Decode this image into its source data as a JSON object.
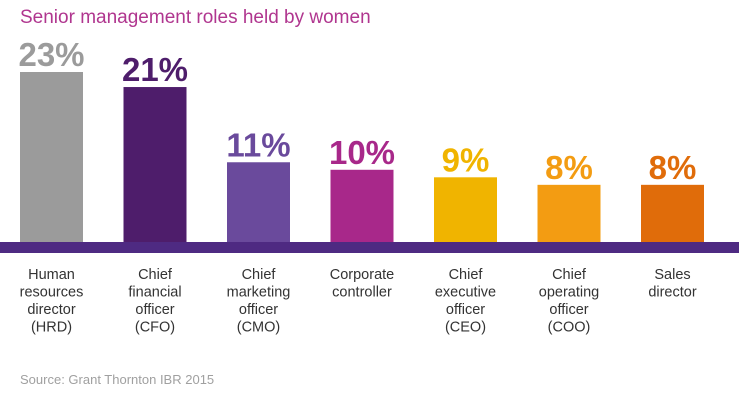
{
  "chart_data": {
    "type": "bar",
    "title": "Senior management roles held by women",
    "categories": [
      [
        "Human",
        "resources",
        "director",
        "(HRD)"
      ],
      [
        "Chief",
        "financial",
        "officer",
        "(CFO)"
      ],
      [
        "Chief",
        "marketing",
        "officer",
        "(CMO)"
      ],
      [
        "Corporate",
        "controller"
      ],
      [
        "Chief",
        "executive",
        "officer",
        "(CEO)"
      ],
      [
        "Chief",
        "operating",
        "officer",
        "(COO)"
      ],
      [
        "Sales",
        "director"
      ]
    ],
    "values": [
      23,
      21,
      11,
      10,
      9,
      8,
      8
    ],
    "value_labels": [
      "23%",
      "21%",
      "11%",
      "10%",
      "9%",
      "8%",
      "8%"
    ],
    "colors": [
      "#9b9b9b",
      "#4e1d6b",
      "#6a4a9c",
      "#a8288a",
      "#f0b400",
      "#f39c12",
      "#e06c0a"
    ],
    "label_colors": [
      "#9b9b9b",
      "#4e1d6b",
      "#6a4a9c",
      "#a8288a",
      "#f0b400",
      "#f39c12",
      "#e06c0a"
    ],
    "baseline_color": "#4e2a82",
    "ylim": [
      0,
      23
    ]
  },
  "source": "Source: Grant Thornton IBR 2015"
}
